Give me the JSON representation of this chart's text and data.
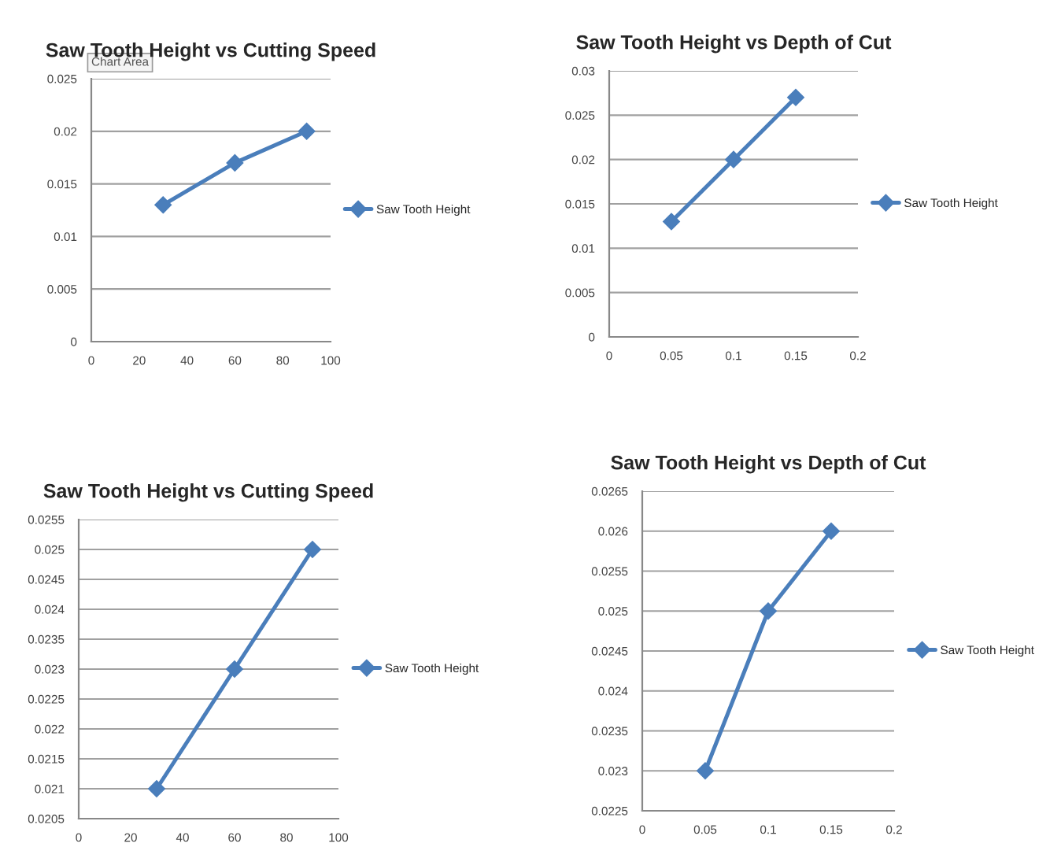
{
  "chart_data": [
    {
      "type": "line",
      "title": "Saw Tooth Height vs Cutting Speed",
      "x": [
        30,
        60,
        90
      ],
      "series": [
        {
          "name": "Saw Tooth Height",
          "color": "#4a7ebb",
          "values": [
            0.013,
            0.017,
            0.02
          ]
        }
      ],
      "xlim": [
        0,
        100
      ],
      "xticks": [
        0,
        20,
        40,
        60,
        80,
        100
      ],
      "ylim": [
        0,
        0.025
      ],
      "yticks": [
        0,
        0.005,
        0.01,
        0.015,
        0.02,
        0.025
      ],
      "grid": "y",
      "legend": "right",
      "marker": "diamond",
      "line_style": "solid",
      "annotations": [
        "Chart Area"
      ]
    },
    {
      "type": "line",
      "title": "Saw Tooth Height vs Depth of Cut",
      "x": [
        0.05,
        0.1,
        0.15
      ],
      "series": [
        {
          "name": "Saw Tooth Height",
          "color": "#4a7ebb",
          "values": [
            0.013,
            0.02,
            0.027
          ]
        }
      ],
      "xlim": [
        0,
        0.2
      ],
      "xticks": [
        0,
        0.05,
        0.1,
        0.15,
        0.2
      ],
      "ylim": [
        0,
        0.03
      ],
      "yticks": [
        0,
        0.005,
        0.01,
        0.015,
        0.02,
        0.025,
        0.03
      ],
      "grid": "y",
      "legend": "right",
      "marker": "diamond",
      "line_style": "solid"
    },
    {
      "type": "line",
      "title": "Saw Tooth Height vs Cutting Speed",
      "x": [
        30,
        60,
        90
      ],
      "series": [
        {
          "name": "Saw Tooth Height",
          "color": "#4a7ebb",
          "values": [
            0.021,
            0.023,
            0.025
          ]
        }
      ],
      "xlim": [
        0,
        100
      ],
      "xticks": [
        0,
        20,
        40,
        60,
        80,
        100
      ],
      "ylim": [
        0.0205,
        0.0255
      ],
      "yticks": [
        0.0205,
        0.021,
        0.0215,
        0.022,
        0.0225,
        0.023,
        0.0235,
        0.024,
        0.0245,
        0.025,
        0.0255
      ],
      "grid": "y",
      "legend": "right",
      "marker": "diamond",
      "line_style": "solid"
    },
    {
      "type": "line",
      "title": "Saw Tooth Height vs Depth of Cut",
      "x": [
        0.05,
        0.1,
        0.15
      ],
      "series": [
        {
          "name": "Saw Tooth Height",
          "color": "#4a7ebb",
          "values": [
            0.023,
            0.025,
            0.026
          ]
        }
      ],
      "xlim": [
        0,
        0.2
      ],
      "xticks": [
        0,
        0.05,
        0.1,
        0.15,
        0.2
      ],
      "ylim": [
        0.0225,
        0.0265
      ],
      "yticks": [
        0.0225,
        0.023,
        0.0235,
        0.024,
        0.0245,
        0.025,
        0.0255,
        0.026,
        0.0265
      ],
      "grid": "y",
      "legend": "right",
      "marker": "diamond",
      "line_style": "solid"
    }
  ]
}
